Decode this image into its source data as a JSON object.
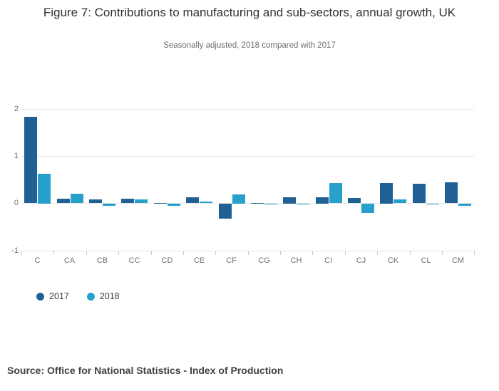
{
  "header": {
    "title": "Figure 7: Contributions to manufacturing and sub-sectors, annual growth, UK",
    "subtitle": "Seasonally adjusted, 2018 compared with 2017"
  },
  "footer": {
    "source": "Source: Office for National Statistics - Index of Production"
  },
  "chart_data": {
    "type": "bar",
    "title": "Figure 7: Contributions to manufacturing and sub-sectors, annual growth, UK",
    "subtitle": "Seasonally adjusted, 2018 compared with 2017",
    "categories": [
      "C",
      "CA",
      "CB",
      "CC",
      "CD",
      "CE",
      "CF",
      "CG",
      "CH",
      "CI",
      "CJ",
      "CK",
      "CL",
      "CM"
    ],
    "series": [
      {
        "name": "2017",
        "color": "#206095",
        "values": [
          1.83,
          0.09,
          0.08,
          0.09,
          0.01,
          0.12,
          -0.31,
          0.01,
          0.13,
          0.13,
          0.11,
          0.43,
          0.41,
          0.44
        ]
      },
      {
        "name": "2018",
        "color": "#27a0cc",
        "values": [
          0.63,
          0.2,
          -0.05,
          0.08,
          -0.04,
          0.03,
          0.19,
          -0.02,
          -0.02,
          0.42,
          -0.2,
          0.08,
          -0.02,
          -0.05
        ]
      }
    ],
    "xlabel": "",
    "ylabel": "",
    "ylim": [
      -1,
      2
    ],
    "yticks": [
      2,
      1,
      0,
      -1
    ],
    "grid": true,
    "legend_position": "bottom-left"
  }
}
